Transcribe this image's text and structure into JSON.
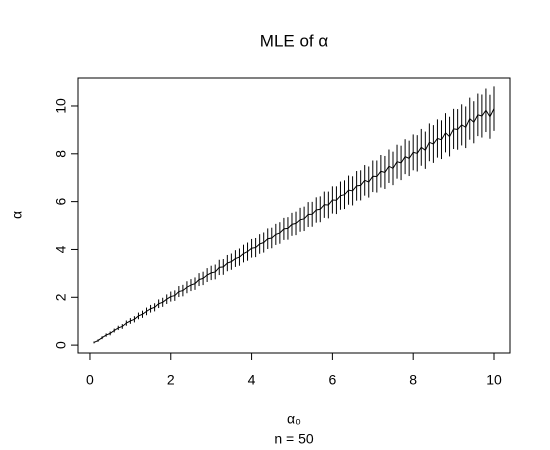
{
  "chart_data": {
    "type": "line",
    "title": "MLE of α",
    "xlabel": "α₀",
    "subtitle": "n = 50",
    "ylabel": "α",
    "x": [
      0.1,
      0.2,
      0.3,
      0.4,
      0.5,
      0.6,
      0.7,
      0.8,
      0.9,
      1.0,
      1.1,
      1.2,
      1.3,
      1.4,
      1.5,
      1.6,
      1.7,
      1.8,
      1.9,
      2.0,
      2.1,
      2.2,
      2.3,
      2.4,
      2.5,
      2.6,
      2.7,
      2.8,
      2.9,
      3.0,
      3.1,
      3.2,
      3.3,
      3.4,
      3.5,
      3.6,
      3.7,
      3.8,
      3.9,
      4.0,
      4.1,
      4.2,
      4.3,
      4.4,
      4.5,
      4.6,
      4.7,
      4.8,
      4.9,
      5.0,
      5.1,
      5.2,
      5.3,
      5.4,
      5.5,
      5.6,
      5.7,
      5.8,
      5.9,
      6.0,
      6.1,
      6.2,
      6.3,
      6.4,
      6.5,
      6.6,
      6.7,
      6.8,
      6.9,
      7.0,
      7.1,
      7.2,
      7.3,
      7.4,
      7.5,
      7.6,
      7.7,
      7.8,
      7.9,
      8.0,
      8.1,
      8.2,
      8.3,
      8.4,
      8.5,
      8.6,
      8.7,
      8.8,
      8.9,
      9.0,
      9.1,
      9.2,
      9.3,
      9.4,
      9.5,
      9.6,
      9.7,
      9.8,
      9.9,
      10.0
    ],
    "values": [
      0.11,
      0.19,
      0.31,
      0.42,
      0.49,
      0.61,
      0.72,
      0.78,
      0.92,
      1.01,
      1.08,
      1.22,
      1.29,
      1.41,
      1.52,
      1.58,
      1.73,
      1.79,
      1.92,
      2.03,
      2.07,
      2.24,
      2.28,
      2.42,
      2.51,
      2.57,
      2.74,
      2.79,
      2.93,
      3.02,
      3.06,
      3.25,
      3.27,
      3.43,
      3.49,
      3.62,
      3.68,
      3.83,
      3.91,
      4.05,
      4.08,
      4.23,
      4.29,
      4.45,
      4.48,
      4.63,
      4.69,
      4.86,
      4.88,
      5.05,
      5.09,
      5.24,
      5.28,
      5.46,
      5.47,
      5.65,
      5.68,
      5.87,
      5.86,
      6.07,
      6.06,
      6.25,
      6.29,
      6.48,
      6.45,
      6.66,
      6.68,
      6.89,
      6.82,
      7.06,
      7.05,
      7.27,
      7.22,
      7.48,
      7.39,
      7.67,
      7.62,
      7.88,
      7.81,
      8.06,
      8.02,
      8.27,
      8.15,
      8.48,
      8.41,
      8.64,
      8.59,
      8.88,
      8.72,
      9.04,
      9.02,
      9.21,
      9.11,
      9.47,
      9.32,
      9.63,
      9.58,
      9.82,
      9.55,
      9.89
    ],
    "errors": [
      0.04,
      0.05,
      0.06,
      0.07,
      0.08,
      0.08,
      0.09,
      0.1,
      0.11,
      0.12,
      0.13,
      0.14,
      0.15,
      0.16,
      0.16,
      0.17,
      0.18,
      0.19,
      0.2,
      0.21,
      0.22,
      0.23,
      0.24,
      0.25,
      0.25,
      0.26,
      0.27,
      0.28,
      0.29,
      0.3,
      0.31,
      0.32,
      0.33,
      0.34,
      0.34,
      0.35,
      0.36,
      0.37,
      0.38,
      0.39,
      0.4,
      0.41,
      0.42,
      0.43,
      0.43,
      0.44,
      0.45,
      0.46,
      0.47,
      0.48,
      0.49,
      0.5,
      0.51,
      0.52,
      0.52,
      0.53,
      0.54,
      0.55,
      0.56,
      0.57,
      0.58,
      0.59,
      0.6,
      0.61,
      0.61,
      0.62,
      0.63,
      0.64,
      0.65,
      0.66,
      0.67,
      0.68,
      0.69,
      0.7,
      0.7,
      0.71,
      0.72,
      0.73,
      0.74,
      0.75,
      0.76,
      0.77,
      0.78,
      0.79,
      0.79,
      0.8,
      0.81,
      0.82,
      0.83,
      0.84,
      0.85,
      0.86,
      0.87,
      0.88,
      0.88,
      0.89,
      0.9,
      0.91,
      0.92,
      0.93
    ],
    "color": "#000000",
    "xlim": [
      -0.296,
      10.396
    ],
    "ylim": [
      -0.33,
      11.17
    ],
    "xticks": [
      0,
      2,
      4,
      6,
      8,
      10
    ],
    "yticks": [
      0,
      2,
      4,
      6,
      8,
      10
    ]
  }
}
